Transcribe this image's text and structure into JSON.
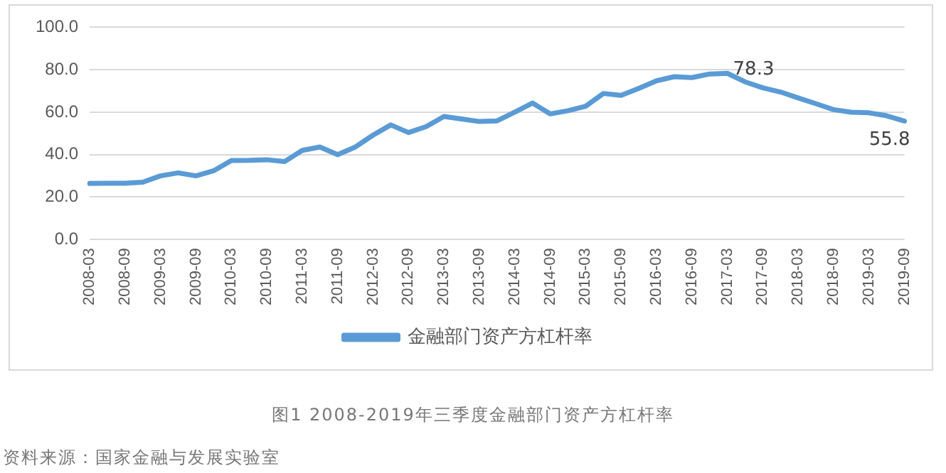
{
  "chart_data": {
    "type": "line",
    "title": "图1 2008-2019年三季度金融部门资产方杠杆率",
    "annotations": [
      "资料来源：国家金融与发展实验室"
    ],
    "categories": [
      "2008-03",
      null,
      "2008-09",
      null,
      "2009-03",
      null,
      "2009-09",
      null,
      "2010-03",
      null,
      "2010-09",
      null,
      "2011-03",
      null,
      "2011-09",
      null,
      "2012-03",
      null,
      "2012-09",
      null,
      "2013-03",
      null,
      "2013-09",
      null,
      "2014-03",
      null,
      "2014-09",
      null,
      "2015-03",
      null,
      "2015-09",
      null,
      "2016-03",
      null,
      "2016-09",
      null,
      "2017-03",
      null,
      "2017-09",
      null,
      "2018-03",
      null,
      "2018-09",
      null,
      "2019-03",
      null,
      "2019-09"
    ],
    "series": [
      {
        "name": "金融部门资产方杠杆率",
        "color": "#5b9bd5",
        "values": [
          26.4,
          26.5,
          26.5,
          27,
          30,
          31.4,
          30,
          32.4,
          37.2,
          37.3,
          37.6,
          36.7,
          42,
          43.6,
          40,
          43.6,
          49.2,
          54,
          50.4,
          53.2,
          58,
          56.8,
          55.6,
          55.9,
          60,
          64.3,
          59.2,
          60.7,
          62.8,
          68.8,
          67.9,
          71.2,
          74.8,
          76.7,
          76.3,
          78,
          78.3,
          74.3,
          71.5,
          69.5,
          66.7,
          64,
          61.2,
          60,
          59.7,
          58.3,
          55.8
        ],
        "value_labels": [
          null,
          null,
          null,
          null,
          null,
          null,
          null,
          null,
          null,
          null,
          null,
          null,
          null,
          null,
          null,
          null,
          null,
          null,
          null,
          null,
          null,
          null,
          null,
          null,
          null,
          null,
          null,
          null,
          null,
          null,
          null,
          null,
          null,
          null,
          null,
          null,
          "78.3",
          null,
          null,
          null,
          null,
          null,
          null,
          null,
          null,
          null,
          "55.8"
        ]
      }
    ],
    "ylim": [
      0,
      100
    ],
    "yticks": [
      {
        "value": 0,
        "label": "0.0"
      },
      {
        "value": 20,
        "label": "20.0"
      },
      {
        "value": 40,
        "label": "40.0"
      },
      {
        "value": 60,
        "label": "60.0"
      },
      {
        "value": 80,
        "label": "80.0"
      },
      {
        "value": 100,
        "label": "100.0"
      }
    ],
    "grid": "y",
    "legend": "bottom",
    "marker": "none",
    "line_style": "solid"
  }
}
